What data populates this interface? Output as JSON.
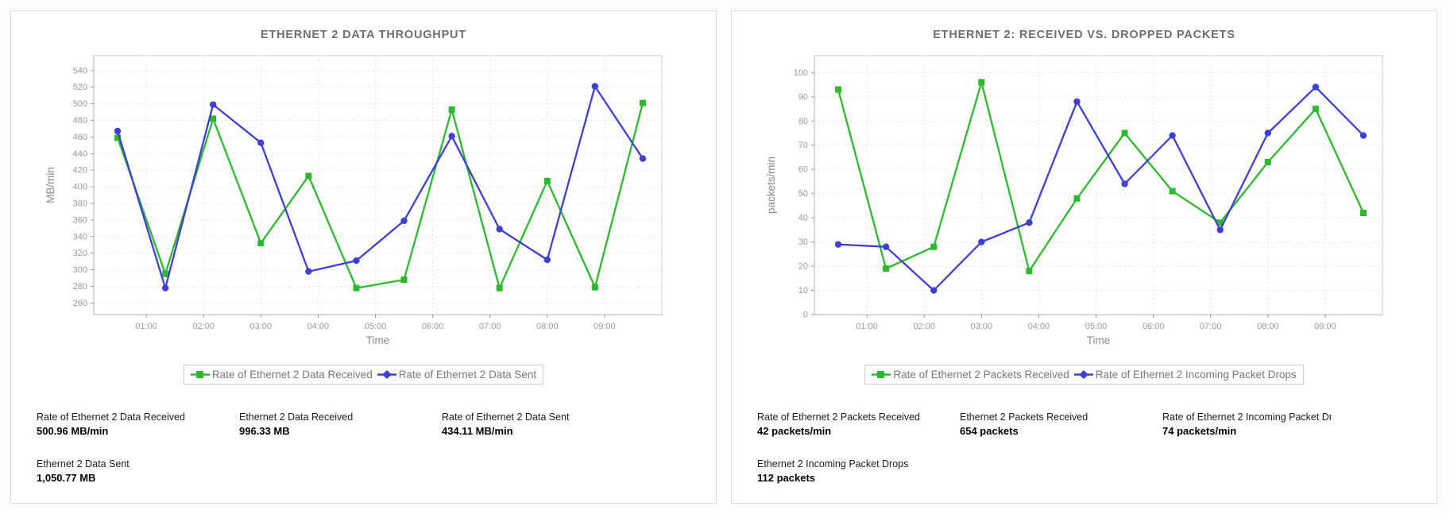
{
  "chart_data": [
    {
      "type": "line",
      "title": "ETHERNET 2 DATA THROUGHPUT",
      "xlabel": "Time",
      "ylabel": "MB/min",
      "x_labels": [
        "00:30",
        "01:20",
        "02:10",
        "03:00",
        "03:50",
        "04:40",
        "05:30",
        "06:20",
        "07:10",
        "08:00",
        "08:50",
        "09:40"
      ],
      "x_minutes": [
        30,
        80,
        130,
        180,
        230,
        280,
        330,
        380,
        430,
        480,
        530,
        580
      ],
      "x_tick_labels": [
        "01:00",
        "02:00",
        "03:00",
        "04:00",
        "05:00",
        "06:00",
        "07:00",
        "08:00",
        "09:00"
      ],
      "x_tick_minutes": [
        60,
        120,
        180,
        240,
        300,
        360,
        420,
        480,
        540
      ],
      "x_domain_minutes": [
        5,
        600
      ],
      "ylim": [
        246,
        558
      ],
      "yticks": [
        260,
        280,
        300,
        320,
        340,
        360,
        380,
        400,
        420,
        440,
        460,
        480,
        500,
        520,
        540
      ],
      "grid": true,
      "legend_position": "bottom",
      "series": [
        {
          "name": "Rate of Ethernet 2 Data Received",
          "color": "#2db92d",
          "marker": "square",
          "legend_marker": "square",
          "values": [
            459,
            295,
            482,
            332,
            413,
            278,
            288,
            493,
            278,
            407,
            279,
            501
          ]
        },
        {
          "name": "Rate of Ethernet 2 Data Sent",
          "color": "#3f3fd3",
          "marker": "circle",
          "legend_marker": "diamond",
          "values": [
            467,
            278,
            499,
            453,
            298,
            311,
            359,
            461,
            349,
            312,
            521,
            434
          ]
        }
      ]
    },
    {
      "type": "line",
      "title": "ETHERNET 2: RECEIVED VS. DROPPED PACKETS",
      "xlabel": "Time",
      "ylabel": "packets/min",
      "x_labels": [
        "00:30",
        "01:20",
        "02:10",
        "03:00",
        "03:50",
        "04:40",
        "05:30",
        "06:20",
        "07:10",
        "08:00",
        "08:50",
        "09:40"
      ],
      "x_minutes": [
        30,
        80,
        130,
        180,
        230,
        280,
        330,
        380,
        430,
        480,
        530,
        580
      ],
      "x_tick_labels": [
        "01:00",
        "02:00",
        "03:00",
        "04:00",
        "05:00",
        "06:00",
        "07:00",
        "08:00",
        "09:00"
      ],
      "x_tick_minutes": [
        60,
        120,
        180,
        240,
        300,
        360,
        420,
        480,
        540
      ],
      "x_domain_minutes": [
        5,
        600
      ],
      "ylim": [
        0,
        107
      ],
      "yticks": [
        0,
        10,
        20,
        30,
        40,
        50,
        60,
        70,
        80,
        90,
        100
      ],
      "grid": true,
      "legend_position": "bottom",
      "series": [
        {
          "name": "Rate of Ethernet 2 Packets Received",
          "color": "#2db92d",
          "marker": "square",
          "legend_marker": "square",
          "values": [
            93,
            19,
            28,
            96,
            18,
            48,
            75,
            51,
            38,
            63,
            85,
            42
          ]
        },
        {
          "name": "Rate of Ethernet 2 Incoming Packet Drops",
          "color": "#3f3fd3",
          "marker": "circle",
          "legend_marker": "diamond",
          "values": [
            29,
            28,
            10,
            30,
            38,
            88,
            54,
            74,
            35,
            75,
            94,
            74
          ]
        }
      ]
    }
  ],
  "panels": [
    {
      "stats": [
        {
          "label": "Rate of Ethernet 2 Data Received",
          "value": "500.96 MB/min"
        },
        {
          "label": "Ethernet 2 Data Received",
          "value": "996.33 MB"
        },
        {
          "label": "Rate of Ethernet 2 Data Sent",
          "value": "434.11 MB/min"
        },
        {
          "label": "Ethernet 2 Data Sent",
          "value": "1,050.77 MB"
        }
      ]
    },
    {
      "stats": [
        {
          "label": "Rate of Ethernet 2 Packets Received",
          "value": "42 packets/min"
        },
        {
          "label": "Ethernet 2 Packets Received",
          "value": "654 packets"
        },
        {
          "label": "Rate of Ethernet 2 Incoming Packet Dr",
          "value": "74 packets/min"
        },
        {
          "label": "Ethernet 2 Incoming Packet Drops",
          "value": "112 packets"
        }
      ]
    }
  ],
  "style": {
    "grid_color": "#e5e5e5",
    "plot_border_color": "#cccccc",
    "axis_line_color": "#b3b3b3",
    "tick_label_color": "#999999",
    "axis_title_color": "#8a8a8a",
    "panel_border_color": "#dddddd",
    "title_color": "#6f6f6f"
  }
}
